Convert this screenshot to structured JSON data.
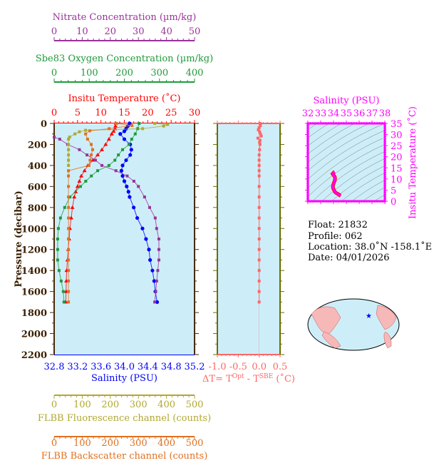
{
  "colors": {
    "salinity": "#0000ff",
    "temperature": "#ff0000",
    "oxygen": "#1f9a3a",
    "nitrate": "#993399",
    "fluorescence": "#b0a830",
    "backscatter": "#e07020",
    "delta": "#ff6666",
    "ts": "#ff00ff",
    "plot_bg": "#cdeef8",
    "frame": "#4a2a0a",
    "delta_frame": "#6b6b00"
  },
  "chart_data": [
    {
      "type": "line",
      "title": "",
      "ylabel": "Pressure (decibar)",
      "ylim": [
        2200,
        0
      ],
      "yticks": [
        "0",
        "200",
        "400",
        "600",
        "800",
        "1000",
        "1200",
        "1400",
        "1600",
        "1800",
        "2000",
        "2200"
      ],
      "grid": false,
      "axes": {
        "nitrate": {
          "label": "Nitrate Concentration (µm/kg)",
          "range": [
            0,
            50
          ],
          "ticks": [
            "0",
            "10",
            "20",
            "30",
            "40",
            "50"
          ]
        },
        "oxygen": {
          "label": "Sbe83 Oxygen Concentration (µm/kg)",
          "range": [
            0,
            400
          ],
          "ticks": [
            "0",
            "100",
            "200",
            "300",
            "400"
          ]
        },
        "temperature": {
          "label": "Insitu Temperature (˚C)",
          "range": [
            0,
            30
          ],
          "ticks": [
            "0",
            "5",
            "10",
            "15",
            "20",
            "25",
            "30"
          ]
        },
        "salinity": {
          "label": "Salinity (PSU)",
          "range": [
            32.8,
            35.2
          ],
          "ticks": [
            "32.8",
            "33.2",
            "33.6",
            "34.0",
            "34.4",
            "34.8",
            "35.2"
          ]
        },
        "fluorescence": {
          "label": "FLBB Fluorescence channel (counts)",
          "range": [
            0,
            500
          ],
          "ticks": [
            "0",
            "100",
            "200",
            "300",
            "400",
            "500"
          ]
        },
        "backscatter": {
          "label": "FLBB Backscatter channel (counts)",
          "range": [
            0,
            500
          ],
          "ticks": [
            "0",
            "100",
            "200",
            "300",
            "400",
            "500"
          ]
        }
      },
      "series": [
        {
          "key": "salinity",
          "marker": "circle",
          "pressure": [
            0,
            25,
            50,
            75,
            100,
            150,
            200,
            250,
            300,
            350,
            400,
            450,
            500,
            550,
            600,
            650,
            700,
            800,
            900,
            1000,
            1100,
            1200,
            1300,
            1400,
            1500,
            1600,
            1700
          ],
          "values": [
            34.09,
            34.06,
            34.03,
            34.0,
            33.93,
            34.0,
            34.1,
            34.12,
            34.1,
            34.03,
            33.97,
            33.95,
            33.97,
            34.0,
            34.04,
            34.07,
            34.09,
            34.16,
            34.22,
            34.31,
            34.37,
            34.42,
            34.44,
            34.48,
            34.51,
            34.53,
            34.56
          ]
        },
        {
          "key": "temperature",
          "marker": "triangle",
          "pressure": [
            0,
            25,
            50,
            75,
            100,
            150,
            200,
            250,
            300,
            350,
            400,
            450,
            500,
            550,
            600,
            650,
            700,
            800,
            900,
            1000,
            1100,
            1200,
            1300,
            1400,
            1500,
            1600,
            1700
          ],
          "values": [
            13.2,
            13.1,
            13.0,
            12.7,
            12.3,
            11.7,
            11.0,
            10.2,
            9.3,
            8.3,
            7.2,
            6.5,
            5.8,
            5.4,
            5.0,
            4.6,
            4.3,
            3.9,
            3.65,
            3.35,
            3.2,
            3.0,
            2.85,
            2.67,
            2.6,
            2.55,
            2.47
          ]
        },
        {
          "key": "oxygen",
          "marker": "square",
          "pressure": [
            0,
            50,
            100,
            150,
            200,
            250,
            300,
            350,
            400,
            450,
            500,
            550,
            600,
            700,
            800,
            900,
            1000,
            1100,
            1200,
            1300,
            1400,
            1500,
            1600,
            1700
          ],
          "values": [
            242,
            238,
            231,
            221,
            213,
            195,
            183,
            173,
            156,
            124,
            106,
            90,
            75,
            45,
            30,
            18,
            12,
            10,
            10,
            10,
            14,
            20,
            26,
            28
          ]
        },
        {
          "key": "nitrate",
          "marker": "square",
          "pressure": [
            130,
            150,
            200,
            250,
            300,
            350,
            400,
            450,
            500,
            550,
            600,
            700,
            800,
            900,
            1000,
            1100,
            1200,
            1300,
            1400,
            1500,
            1600,
            1700
          ],
          "values": [
            0,
            2,
            4.8,
            9,
            11.7,
            14.7,
            17,
            22,
            26,
            28.4,
            30,
            32.2,
            34,
            36,
            36.5,
            37.3,
            37.3,
            37.3,
            36.9,
            36.5,
            36.2,
            35.8
          ]
        },
        {
          "key": "fluorescence",
          "marker": "square",
          "pressure": [
            0,
            10,
            25,
            50,
            65,
            80,
            100,
            130,
            150,
            200,
            250,
            300,
            350,
            400
          ],
          "values": [
            358,
            404,
            390,
            315,
            112,
            90,
            74,
            55,
            51,
            51,
            51,
            51,
            51,
            51
          ]
        },
        {
          "key": "backscatter",
          "marker": "square",
          "pressure": [
            0,
            20,
            50,
            70,
            100,
            150,
            200,
            250,
            300,
            350,
            400,
            450,
            500,
            600,
            700,
            800,
            900,
            1000,
            1100,
            1200,
            1300,
            1400,
            1500,
            1600,
            1700
          ],
          "values": [
            221,
            277,
            196,
            127,
            112,
            119,
            132,
            137,
            132,
            128,
            124,
            51,
            51,
            51,
            51,
            51,
            51,
            51,
            51,
            51,
            51,
            51,
            51,
            51,
            51
          ]
        }
      ]
    },
    {
      "type": "scatter",
      "xlabel_parts": [
        "ΔT= T",
        "Opt",
        " - T",
        "SBE",
        " (˚C)"
      ],
      "xlim": [
        -1.0,
        0.5
      ],
      "xticks": [
        "-1.0",
        "-0.5",
        "0.0",
        "0.5"
      ],
      "ylim": [
        2200,
        0
      ],
      "pressure": [
        0,
        20,
        40,
        60,
        80,
        100,
        120,
        140,
        160,
        180,
        200,
        250,
        300,
        350,
        400,
        450,
        500,
        600,
        700,
        800,
        900,
        1000,
        1100,
        1200,
        1300,
        1400,
        1500,
        1600,
        1700
      ],
      "values": [
        0.02,
        0.03,
        0.0,
        -0.02,
        0.01,
        0.03,
        0.05,
        -0.03,
        0.02,
        0.01,
        0.02,
        0.01,
        0.0,
        0.0,
        0.0,
        0.0,
        0.0,
        0.0,
        0.0,
        0.0,
        0.0,
        0.0,
        0.0,
        0.0,
        0.0,
        0.0,
        0.0,
        0.0,
        0.0
      ]
    },
    {
      "type": "line",
      "title": "Salinity (PSU)",
      "xlabel": "Salinity (PSU)",
      "ylabel": "Insitu Temperature (˚C)",
      "xlim": [
        32,
        38
      ],
      "ylim": [
        0,
        35
      ],
      "xticks": [
        "32",
        "33",
        "34",
        "35",
        "36",
        "37",
        "38"
      ],
      "yticks": [
        "0",
        "5",
        "10",
        "15",
        "20",
        "25",
        "30",
        "35"
      ]
    }
  ],
  "info": {
    "float": "Float:  21832",
    "profile": "Profile:  062",
    "location": "Location:  38.0˚N  -158.1˚E",
    "date": "Date:  04/01/2026"
  },
  "map": {
    "marker_icon": "star-icon",
    "lat": 38.0,
    "lon": -158.1
  }
}
